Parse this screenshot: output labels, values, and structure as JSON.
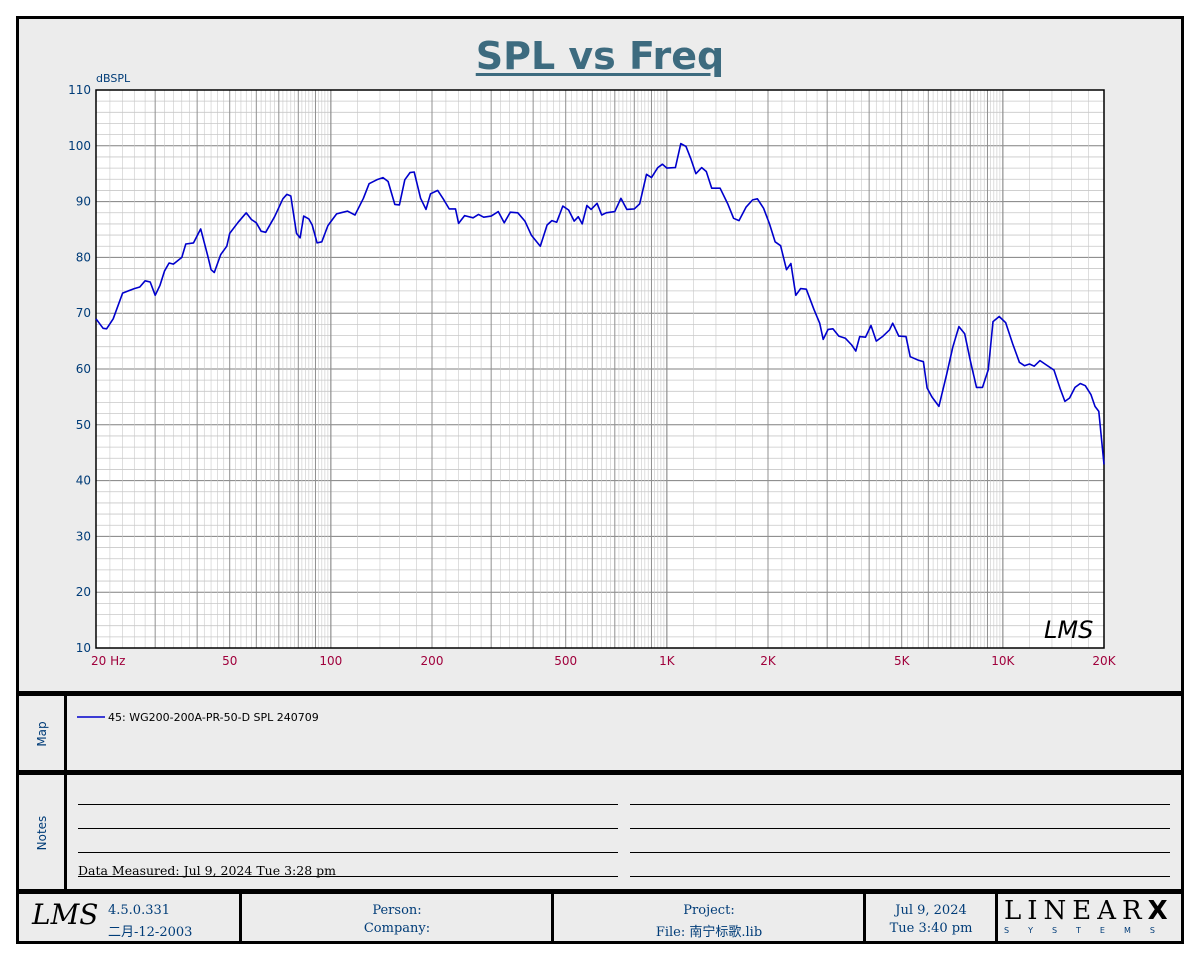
{
  "chart_data": {
    "type": "line",
    "title": "SPL vs Freq",
    "ylabel": "dBSPL",
    "xlabel": "Hz",
    "x_scale": "log",
    "xlim": [
      20,
      20000
    ],
    "ylim": [
      10,
      110
    ],
    "y_ticks": [
      110,
      100,
      90,
      80,
      70,
      60,
      50,
      40,
      30,
      20,
      10
    ],
    "x_ticks": [
      {
        "value": 20,
        "label": "20  Hz"
      },
      {
        "value": 50,
        "label": "50"
      },
      {
        "value": 100,
        "label": "100"
      },
      {
        "value": 200,
        "label": "200"
      },
      {
        "value": 500,
        "label": "500"
      },
      {
        "value": 1000,
        "label": "1K"
      },
      {
        "value": 2000,
        "label": "2K"
      },
      {
        "value": 5000,
        "label": "5K"
      },
      {
        "value": 10000,
        "label": "10K"
      },
      {
        "value": 20000,
        "label": "20K"
      }
    ],
    "grid": true,
    "series": [
      {
        "name": "45: WG200-200A-PR-50-D SPL 240709",
        "color": "#0000cc",
        "points": [
          [
            20,
            69
          ],
          [
            21,
            67.3
          ],
          [
            21.5,
            67.2
          ],
          [
            22.5,
            69
          ],
          [
            24,
            73.6
          ],
          [
            26,
            74.4
          ],
          [
            27,
            74.7
          ],
          [
            28,
            75.8
          ],
          [
            29,
            75.6
          ],
          [
            30,
            73.2
          ],
          [
            31,
            75
          ],
          [
            32,
            77.6
          ],
          [
            33,
            79
          ],
          [
            34,
            78.8
          ],
          [
            36,
            80
          ],
          [
            37,
            82.4
          ],
          [
            39,
            82.6
          ],
          [
            41,
            85.1
          ],
          [
            43,
            80.3
          ],
          [
            44,
            77.8
          ],
          [
            45,
            77.3
          ],
          [
            47,
            80.5
          ],
          [
            49,
            82
          ],
          [
            50,
            84.3
          ],
          [
            53,
            86.3
          ],
          [
            56,
            88
          ],
          [
            58,
            86.8
          ],
          [
            60,
            86.2
          ],
          [
            62,
            84.7
          ],
          [
            64,
            84.5
          ],
          [
            68,
            87.3
          ],
          [
            72,
            90.5
          ],
          [
            74,
            91.3
          ],
          [
            76,
            91
          ],
          [
            79,
            84.3
          ],
          [
            81,
            83.5
          ],
          [
            83,
            87.4
          ],
          [
            86,
            86.9
          ],
          [
            88,
            85.8
          ],
          [
            91,
            82.6
          ],
          [
            94,
            82.8
          ],
          [
            98,
            85.7
          ],
          [
            104,
            87.8
          ],
          [
            107,
            88
          ],
          [
            112,
            88.3
          ],
          [
            118,
            87.6
          ],
          [
            125,
            90.6
          ],
          [
            130,
            93.2
          ],
          [
            137,
            93.9
          ],
          [
            143,
            94.3
          ],
          [
            148,
            93.6
          ],
          [
            155,
            89.5
          ],
          [
            160,
            89.4
          ],
          [
            166,
            93.9
          ],
          [
            172,
            95.2
          ],
          [
            177,
            95.3
          ],
          [
            185,
            90.6
          ],
          [
            192,
            88.6
          ],
          [
            198,
            91.4
          ],
          [
            208,
            92
          ],
          [
            216,
            90.5
          ],
          [
            225,
            88.7
          ],
          [
            235,
            88.7
          ],
          [
            240,
            86.1
          ],
          [
            250,
            87.5
          ],
          [
            265,
            87.1
          ],
          [
            275,
            87.7
          ],
          [
            285,
            87.2
          ],
          [
            300,
            87.4
          ],
          [
            315,
            88.2
          ],
          [
            328,
            86.2
          ],
          [
            342,
            88.1
          ],
          [
            360,
            88
          ],
          [
            378,
            86.5
          ],
          [
            395,
            84
          ],
          [
            420,
            82
          ],
          [
            440,
            85.8
          ],
          [
            455,
            86.6
          ],
          [
            470,
            86.3
          ],
          [
            490,
            89.2
          ],
          [
            510,
            88.5
          ],
          [
            530,
            86.5
          ],
          [
            545,
            87.3
          ],
          [
            560,
            86
          ],
          [
            578,
            89.3
          ],
          [
            595,
            88.6
          ],
          [
            620,
            89.7
          ],
          [
            640,
            87.6
          ],
          [
            660,
            88
          ],
          [
            700,
            88.2
          ],
          [
            730,
            90.6
          ],
          [
            760,
            88.6
          ],
          [
            800,
            88.7
          ],
          [
            830,
            89.6
          ],
          [
            870,
            94.9
          ],
          [
            900,
            94.3
          ],
          [
            940,
            96.1
          ],
          [
            970,
            96.7
          ],
          [
            1000,
            96
          ],
          [
            1060,
            96.1
          ],
          [
            1100,
            100.4
          ],
          [
            1140,
            99.9
          ],
          [
            1180,
            97.6
          ],
          [
            1220,
            95
          ],
          [
            1270,
            96.1
          ],
          [
            1310,
            95.4
          ],
          [
            1360,
            92.4
          ],
          [
            1440,
            92.4
          ],
          [
            1520,
            89.5
          ],
          [
            1580,
            87
          ],
          [
            1640,
            86.6
          ],
          [
            1720,
            89
          ],
          [
            1800,
            90.3
          ],
          [
            1860,
            90.5
          ],
          [
            1940,
            88.8
          ],
          [
            2020,
            86
          ],
          [
            2100,
            82.8
          ],
          [
            2180,
            82.1
          ],
          [
            2270,
            77.8
          ],
          [
            2340,
            78.9
          ],
          [
            2420,
            73.2
          ],
          [
            2500,
            74.4
          ],
          [
            2600,
            74.3
          ],
          [
            2740,
            70.7
          ],
          [
            2850,
            68.2
          ],
          [
            2920,
            65.3
          ],
          [
            3020,
            67.1
          ],
          [
            3120,
            67.2
          ],
          [
            3250,
            65.9
          ],
          [
            3400,
            65.5
          ],
          [
            3550,
            64.3
          ],
          [
            3650,
            63.2
          ],
          [
            3750,
            65.8
          ],
          [
            3900,
            65.7
          ],
          [
            4050,
            67.8
          ],
          [
            4200,
            65
          ],
          [
            4400,
            65.9
          ],
          [
            4600,
            67
          ],
          [
            4700,
            68.2
          ],
          [
            4900,
            65.9
          ],
          [
            5150,
            65.8
          ],
          [
            5300,
            62.2
          ],
          [
            5600,
            61.6
          ],
          [
            5800,
            61.3
          ],
          [
            5950,
            56.6
          ],
          [
            6150,
            55
          ],
          [
            6450,
            53.3
          ],
          [
            6800,
            59
          ],
          [
            7100,
            64
          ],
          [
            7400,
            67.6
          ],
          [
            7700,
            66.3
          ],
          [
            8000,
            61.5
          ],
          [
            8350,
            56.7
          ],
          [
            8700,
            56.7
          ],
          [
            9050,
            59.9
          ],
          [
            9350,
            68.5
          ],
          [
            9750,
            69.4
          ],
          [
            10200,
            68.3
          ],
          [
            10700,
            64.5
          ],
          [
            11200,
            61.2
          ],
          [
            11600,
            60.6
          ],
          [
            12000,
            60.9
          ],
          [
            12400,
            60.5
          ],
          [
            12900,
            61.5
          ],
          [
            13500,
            60.7
          ],
          [
            14200,
            59.8
          ],
          [
            14800,
            56.5
          ],
          [
            15300,
            54.2
          ],
          [
            15800,
            54.8
          ],
          [
            16400,
            56.7
          ],
          [
            17000,
            57.4
          ],
          [
            17600,
            57
          ],
          [
            18300,
            55.4
          ],
          [
            18800,
            53.3
          ],
          [
            19300,
            52.4
          ],
          [
            20000,
            42.9
          ]
        ]
      }
    ]
  },
  "watermark": "LMS",
  "map": {
    "label": "Map",
    "entry": "45: WG200-200A-PR-50-D SPL 240709"
  },
  "notes": {
    "label": "Notes",
    "data_measured": "Data Measured: Jul  9, 2024  Tue  3:28 pm"
  },
  "footer": {
    "logo": "LMS",
    "version": "4.5.0.331",
    "build_date": "二月-12-2003",
    "person": "Person:",
    "company": "Company:",
    "project": "Project:",
    "file": "File: 南宁标歌.lib",
    "date": "Jul  9, 2024",
    "time": "Tue  3:40 pm",
    "brand_big": "LINEAR",
    "brand_x": "X",
    "brand_small": "SYSTEMS"
  },
  "colors": {
    "curve": "#0000cc",
    "y_tick_labels": "#003c78",
    "x_tick_labels": "#a0003c",
    "title": "#3d6b7f",
    "background": "#ececec"
  }
}
